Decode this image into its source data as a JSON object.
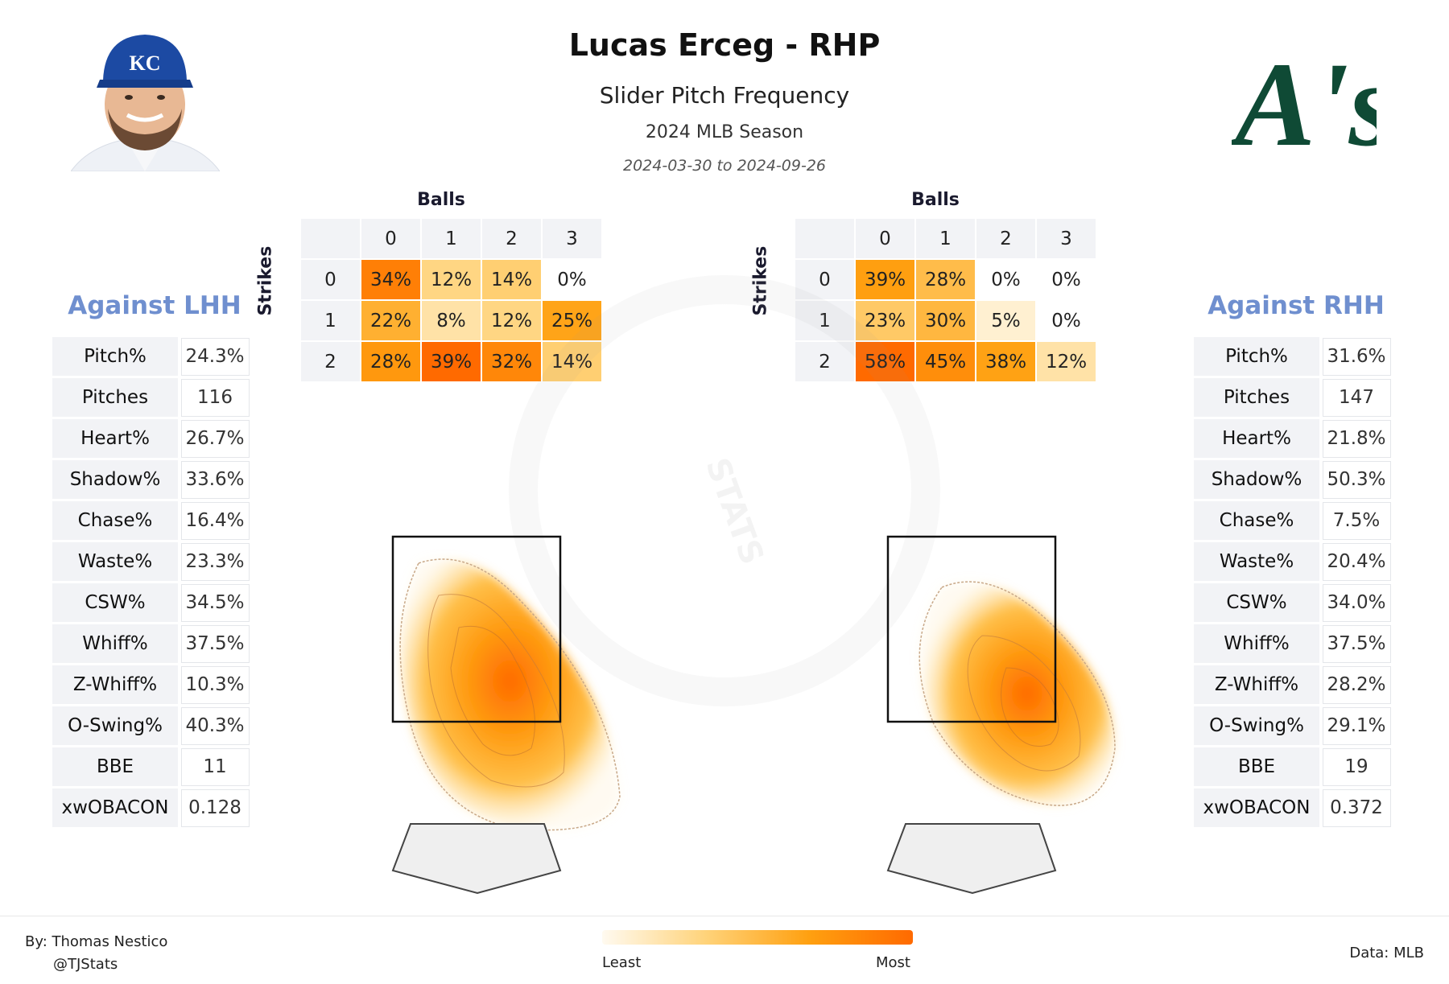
{
  "header": {
    "title": "Lucas Erceg - RHP",
    "subtitle": "Slider Pitch Frequency",
    "season": "2024 MLB Season",
    "dates": "2024-03-30 to 2024-09-26"
  },
  "logos": {
    "player_cap_letters": "KC",
    "team_logo_text": "A's"
  },
  "left": {
    "title": "Against LHH",
    "stats": [
      {
        "label": "Pitch%",
        "value": "24.3%"
      },
      {
        "label": "Pitches",
        "value": "116"
      },
      {
        "label": "Heart%",
        "value": "26.7%"
      },
      {
        "label": "Shadow%",
        "value": "33.6%"
      },
      {
        "label": "Chase%",
        "value": "16.4%"
      },
      {
        "label": "Waste%",
        "value": "23.3%"
      },
      {
        "label": "CSW%",
        "value": "34.5%"
      },
      {
        "label": "Whiff%",
        "value": "37.5%"
      },
      {
        "label": "Z-Whiff%",
        "value": "10.3%"
      },
      {
        "label": "O-Swing%",
        "value": "40.3%"
      },
      {
        "label": "BBE",
        "value": "11"
      },
      {
        "label": "xwOBACON",
        "value": "0.128"
      }
    ]
  },
  "right": {
    "title": "Against RHH",
    "stats": [
      {
        "label": "Pitch%",
        "value": "31.6%"
      },
      {
        "label": "Pitches",
        "value": "147"
      },
      {
        "label": "Heart%",
        "value": "21.8%"
      },
      {
        "label": "Shadow%",
        "value": "50.3%"
      },
      {
        "label": "Chase%",
        "value": "7.5%"
      },
      {
        "label": "Waste%",
        "value": "20.4%"
      },
      {
        "label": "CSW%",
        "value": "34.0%"
      },
      {
        "label": "Whiff%",
        "value": "37.5%"
      },
      {
        "label": "Z-Whiff%",
        "value": "28.2%"
      },
      {
        "label": "O-Swing%",
        "value": "29.1%"
      },
      {
        "label": "BBE",
        "value": "19"
      },
      {
        "label": "xwOBACON",
        "value": "0.372"
      }
    ]
  },
  "count_axes": {
    "balls_label": "Balls",
    "strikes_label": "Strikes",
    "balls": [
      "0",
      "1",
      "2",
      "3"
    ],
    "strikes": [
      "0",
      "1",
      "2"
    ]
  },
  "chart_data": [
    {
      "type": "heatmap",
      "title": "",
      "xlabel": "Balls",
      "ylabel": "Strikes",
      "x": [
        "0",
        "1",
        "2",
        "3"
      ],
      "y": [
        "0",
        "1",
        "2"
      ],
      "values": [
        [
          34,
          12,
          14,
          0
        ],
        [
          22,
          8,
          12,
          25
        ],
        [
          28,
          39,
          32,
          14
        ]
      ],
      "unit": "%"
    },
    {
      "type": "heatmap",
      "title": "",
      "xlabel": "Balls",
      "ylabel": "Strikes",
      "x": [
        "0",
        "1",
        "2",
        "3"
      ],
      "y": [
        "0",
        "1",
        "2"
      ],
      "values": [
        [
          39,
          28,
          0,
          0
        ],
        [
          23,
          30,
          5,
          0
        ],
        [
          58,
          45,
          38,
          12
        ]
      ],
      "unit": "%"
    }
  ],
  "colorbar": {
    "least_label": "Least",
    "most_label": "Most",
    "colors": [
      "#fffaf0",
      "#ffd37a",
      "#ffa010",
      "#ff6a00"
    ]
  },
  "footer": {
    "author": "By: Thomas Nestico",
    "handle": "@TJStats",
    "source": "Data: MLB"
  },
  "watermark": "STATS"
}
